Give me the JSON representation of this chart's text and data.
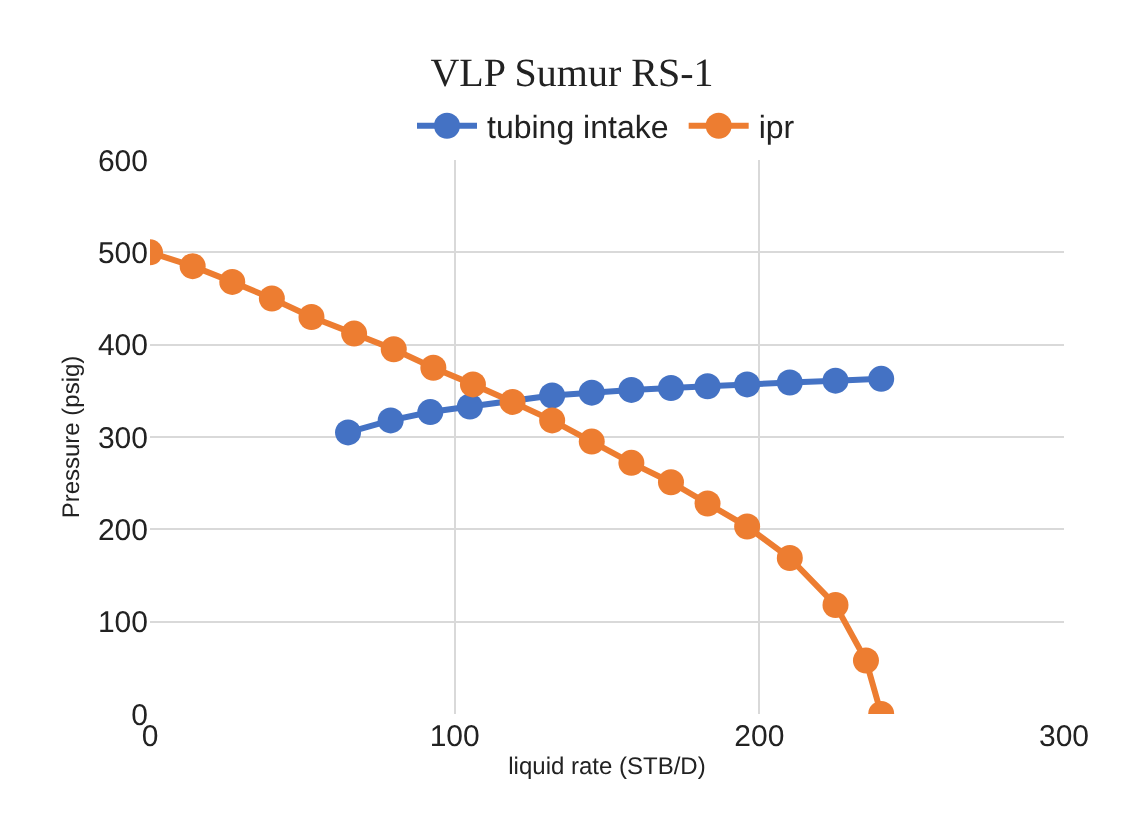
{
  "chart_data": {
    "type": "line",
    "title": "VLP Sumur RS-1",
    "xlabel": "liquid rate (STB/D)",
    "ylabel": "Pressure (psig)",
    "xlim": [
      0,
      300
    ],
    "xticks": [
      0,
      100,
      200,
      300
    ],
    "ylim": [
      0,
      600
    ],
    "yticks": [
      0,
      100,
      200,
      300,
      400,
      500,
      600
    ],
    "grid": true,
    "legend": "top",
    "marker": "circle",
    "line_style": "solid",
    "series": [
      {
        "name": "tubing intake",
        "color": "#4472c4",
        "x": [
          65,
          79,
          92,
          105,
          118,
          132,
          145,
          158,
          171,
          183,
          196,
          210,
          225,
          240
        ],
        "values": [
          305,
          318,
          327,
          333,
          null,
          345,
          348,
          351,
          353,
          355,
          357,
          359,
          361,
          363
        ]
      },
      {
        "name": "ipr",
        "color": "#ed7d31",
        "x": [
          0,
          14,
          27,
          40,
          53,
          67,
          80,
          93,
          106,
          119,
          132,
          145,
          158,
          171,
          183,
          196,
          210,
          225,
          235,
          240
        ],
        "values": [
          500,
          485,
          468,
          450,
          430,
          412,
          395,
          375,
          357,
          338,
          318,
          295,
          272,
          251,
          228,
          203,
          169,
          118,
          58,
          0
        ]
      }
    ]
  }
}
